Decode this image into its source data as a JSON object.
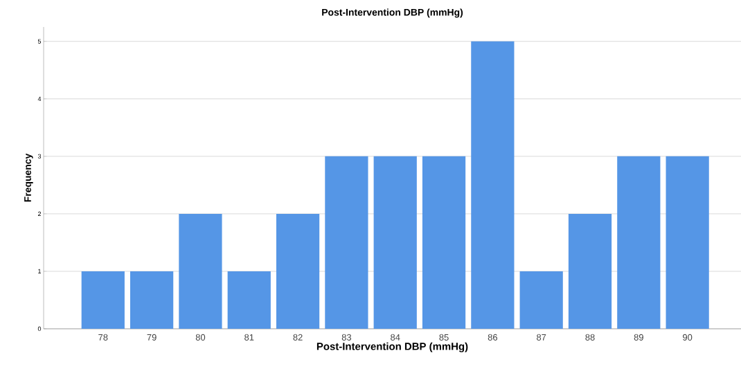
{
  "chart_data": {
    "type": "bar",
    "title": "Post-Intervention DBP (mmHg)",
    "xlabel": "Post-Intervention DBP (mmHg)",
    "ylabel": "Frequency",
    "categories": [
      "78",
      "79",
      "80",
      "81",
      "82",
      "83",
      "84",
      "85",
      "86",
      "87",
      "88",
      "89",
      "90"
    ],
    "values": [
      1,
      1,
      2,
      1,
      2,
      3,
      3,
      3,
      5,
      1,
      2,
      3,
      3
    ],
    "color": "#5596e6",
    "ylim": [
      0,
      5.25
    ],
    "yticks": [
      0,
      1,
      2,
      3,
      4,
      5
    ],
    "grid": "y"
  }
}
